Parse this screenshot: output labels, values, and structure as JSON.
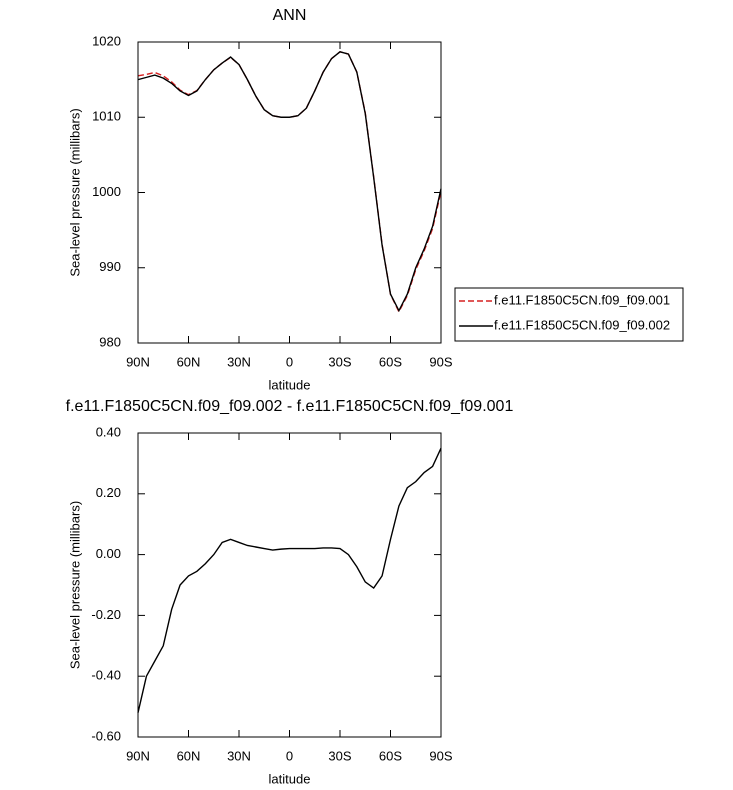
{
  "chart_data": [
    {
      "type": "line",
      "title": "ANN",
      "xlabel": "latitude",
      "ylabel": "Sea-level pressure (millibars)",
      "x": [
        90,
        85,
        80,
        75,
        70,
        65,
        60,
        55,
        50,
        45,
        40,
        35,
        30,
        25,
        20,
        15,
        10,
        5,
        0,
        -5,
        -10,
        -15,
        -20,
        -25,
        -30,
        -35,
        -40,
        -45,
        -50,
        -55,
        -60,
        -65,
        -70,
        -75,
        -80,
        -85,
        -90
      ],
      "xlim": [
        90,
        -90
      ],
      "xticks": [
        {
          "value": 90,
          "label": "90N"
        },
        {
          "value": 60,
          "label": "60N"
        },
        {
          "value": 30,
          "label": "30N"
        },
        0,
        {
          "value": -30,
          "label": "30S"
        },
        {
          "value": -60,
          "label": "60S"
        },
        {
          "value": -90,
          "label": "90S"
        }
      ],
      "ylim": [
        980,
        1020
      ],
      "yticks": [
        980,
        990,
        1000,
        1010,
        1020
      ],
      "legend": "right",
      "series": [
        {
          "name": "f.e11.F1850C5CN.f09_f09.001",
          "color": "#d62020",
          "linestyle": "dashed",
          "values": [
            1015.5,
            1015.7,
            1015.95,
            1015.5,
            1014.7,
            1013.6,
            1013.0,
            1013.55,
            1015.0,
            1016.3,
            1017.2,
            1017.95,
            1017.0,
            1015.0,
            1012.8,
            1011.0,
            1010.2,
            1010.0,
            1010.0,
            1010.2,
            1011.2,
            1013.5,
            1016.0,
            1017.8,
            1018.7,
            1018.4,
            1016.0,
            1010.6,
            1002.1,
            993.1,
            986.45,
            984.15,
            986.3,
            989.75,
            992.25,
            995.2,
            1000.15
          ]
        },
        {
          "name": "f.e11.F1850C5CN.f09_f09.002",
          "color": "#000000",
          "linestyle": "solid",
          "values": [
            1015.0,
            1015.3,
            1015.6,
            1015.2,
            1014.5,
            1013.5,
            1012.9,
            1013.5,
            1015.0,
            1016.3,
            1017.2,
            1018.0,
            1017.0,
            1015.0,
            1012.8,
            1011.0,
            1010.2,
            1010.0,
            1010.0,
            1010.2,
            1011.2,
            1013.5,
            1016.0,
            1017.8,
            1018.7,
            1018.4,
            1016.0,
            1010.5,
            1002.0,
            993.0,
            986.5,
            984.3,
            986.5,
            990.0,
            992.5,
            995.5,
            1000.5
          ]
        }
      ]
    },
    {
      "type": "line",
      "title": "f.e11.F1850C5CN.f09_f09.002 - f.e11.F1850C5CN.f09_f09.001",
      "xlabel": "latitude",
      "ylabel": "Sea-level pressure (millibars)",
      "x": [
        90,
        85,
        80,
        75,
        70,
        65,
        60,
        55,
        50,
        45,
        40,
        35,
        30,
        25,
        20,
        15,
        10,
        5,
        0,
        -5,
        -10,
        -15,
        -20,
        -25,
        -30,
        -35,
        -40,
        -45,
        -50,
        -55,
        -60,
        -65,
        -70,
        -75,
        -80,
        -85,
        -90
      ],
      "xlim": [
        90,
        -90
      ],
      "xticks": [
        {
          "value": 90,
          "label": "90N"
        },
        {
          "value": 60,
          "label": "60N"
        },
        {
          "value": 30,
          "label": "30N"
        },
        0,
        {
          "value": -30,
          "label": "30S"
        },
        {
          "value": -60,
          "label": "60S"
        },
        {
          "value": -90,
          "label": "90S"
        }
      ],
      "ylim": [
        -0.6,
        0.4
      ],
      "yticks": [
        {
          "value": -0.6,
          "label": "-0.60"
        },
        {
          "value": -0.4,
          "label": "-0.40"
        },
        {
          "value": -0.2,
          "label": "-0.20"
        },
        {
          "value": 0,
          "label": "0.00"
        },
        {
          "value": 0.2,
          "label": "0.20"
        },
        {
          "value": 0.4,
          "label": "0.40"
        }
      ],
      "series": [
        {
          "color": "#000000",
          "linestyle": "solid",
          "values": [
            -0.52,
            -0.4,
            -0.35,
            -0.3,
            -0.18,
            -0.1,
            -0.07,
            -0.055,
            -0.03,
            0.0,
            0.04,
            0.05,
            0.04,
            0.03,
            0.025,
            0.02,
            0.015,
            0.018,
            0.02,
            0.02,
            0.02,
            0.02,
            0.022,
            0.022,
            0.02,
            0.0,
            -0.04,
            -0.09,
            -0.11,
            -0.07,
            0.05,
            0.16,
            0.22,
            0.24,
            0.27,
            0.29,
            0.35
          ]
        }
      ]
    }
  ]
}
